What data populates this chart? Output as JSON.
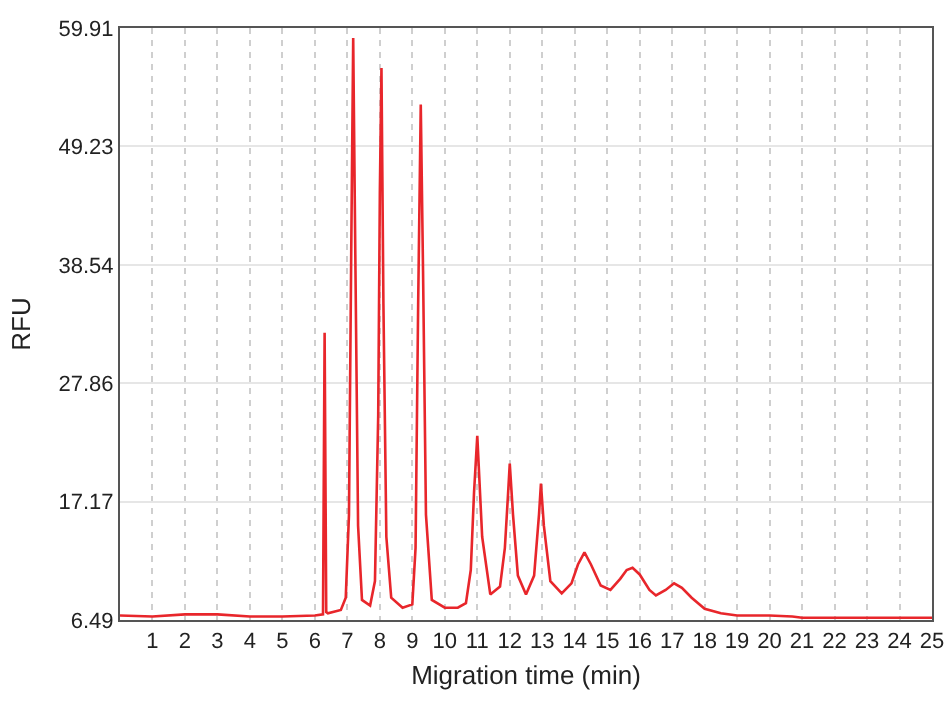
{
  "chart_data": {
    "type": "line",
    "xlabel": "Migration time (min)",
    "ylabel": "RFU",
    "xlim": [
      0,
      25
    ],
    "xticks": [
      1,
      2,
      3,
      4,
      5,
      6,
      7,
      8,
      9,
      10,
      11,
      12,
      13,
      14,
      15,
      16,
      17,
      18,
      19,
      20,
      21,
      22,
      23,
      24,
      25
    ],
    "ylim": [
      6.49,
      59.91
    ],
    "yticks": [
      6.49,
      17.17,
      27.86,
      38.54,
      49.23,
      59.91
    ],
    "grid": true,
    "marker": "none",
    "line_style": "solid",
    "series": [
      {
        "color": "#e8262b",
        "x": [
          0,
          1,
          2,
          2.7,
          3,
          4,
          5,
          6,
          6.25,
          6.3,
          6.35,
          6.4,
          6.8,
          6.95,
          7.05,
          7.12,
          7.18,
          7.25,
          7.33,
          7.45,
          7.7,
          7.85,
          7.95,
          8.0,
          8.05,
          8.11,
          8.2,
          8.35,
          8.7,
          9.0,
          9.1,
          9.18,
          9.26,
          9.33,
          9.42,
          9.6,
          10.0,
          10.4,
          10.65,
          10.8,
          10.9,
          11.0,
          11.15,
          11.4,
          11.7,
          11.85,
          11.95,
          12.0,
          12.1,
          12.25,
          12.5,
          12.75,
          12.9,
          12.96,
          13.05,
          13.25,
          13.6,
          13.9,
          14.1,
          14.3,
          14.5,
          14.8,
          15.1,
          15.4,
          15.6,
          15.78,
          16.0,
          16.3,
          16.5,
          16.8,
          17.06,
          17.3,
          17.6,
          18.0,
          18.5,
          19.0,
          20.0,
          20.7,
          21.0,
          22,
          23,
          24,
          25
        ],
        "values": [
          6.9,
          6.8,
          7.0,
          7.0,
          7.0,
          6.8,
          6.8,
          6.9,
          7.0,
          32.4,
          7.2,
          7.1,
          7.4,
          8.5,
          16,
          40,
          59.0,
          38,
          15,
          8.3,
          7.8,
          10,
          25,
          45,
          56.3,
          35,
          14,
          8.5,
          7.6,
          7.9,
          13,
          35,
          53.0,
          38,
          16,
          8.3,
          7.6,
          7.6,
          8.0,
          11,
          18,
          23.1,
          14,
          8.8,
          9.5,
          13,
          18,
          20.6,
          16,
          10.5,
          8.8,
          10.5,
          16,
          18.8,
          15,
          10,
          8.9,
          9.8,
          11.5,
          12.6,
          11.5,
          9.6,
          9.2,
          10.2,
          11,
          11.2,
          10.6,
          9.2,
          8.7,
          9.2,
          9.8,
          9.4,
          8.5,
          7.5,
          7.1,
          6.9,
          6.9,
          6.8,
          6.7,
          6.7,
          6.7,
          6.7,
          6.7
        ]
      }
    ]
  }
}
